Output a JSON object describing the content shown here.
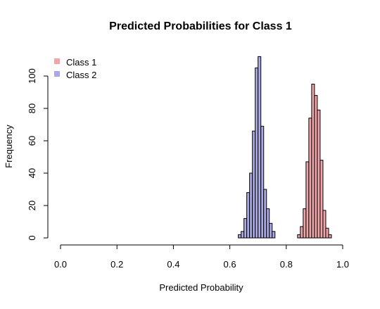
{
  "chart_data": {
    "type": "bar",
    "title": "Predicted Probabilities for Class 1",
    "xlabel": "Predicted Probability",
    "ylabel": "Frequency",
    "xlim": [
      0.0,
      1.0
    ],
    "ylim": [
      0,
      110
    ],
    "x_ticks": [
      "0.0",
      "0.2",
      "0.4",
      "0.6",
      "0.8",
      "1.0"
    ],
    "y_ticks": [
      "0",
      "20",
      "40",
      "60",
      "80",
      "100"
    ],
    "bin_width": 0.01,
    "grid": false,
    "legend_position": "top-left",
    "series": [
      {
        "name": "Class 1",
        "color": "#f4a3a8",
        "bins": [
          {
            "x0": 0.84,
            "x1": 0.85,
            "count": 2
          },
          {
            "x0": 0.85,
            "x1": 0.86,
            "count": 7
          },
          {
            "x0": 0.86,
            "x1": 0.87,
            "count": 18
          },
          {
            "x0": 0.87,
            "x1": 0.88,
            "count": 47
          },
          {
            "x0": 0.88,
            "x1": 0.89,
            "count": 74
          },
          {
            "x0": 0.89,
            "x1": 0.9,
            "count": 95
          },
          {
            "x0": 0.9,
            "x1": 0.91,
            "count": 88
          },
          {
            "x0": 0.91,
            "x1": 0.92,
            "count": 79
          },
          {
            "x0": 0.92,
            "x1": 0.93,
            "count": 48
          },
          {
            "x0": 0.93,
            "x1": 0.94,
            "count": 17
          },
          {
            "x0": 0.94,
            "x1": 0.95,
            "count": 6
          },
          {
            "x0": 0.95,
            "x1": 0.96,
            "count": 2
          }
        ]
      },
      {
        "name": "Class 2",
        "color": "#a8a8f0",
        "bins": [
          {
            "x0": 0.63,
            "x1": 0.64,
            "count": 2
          },
          {
            "x0": 0.64,
            "x1": 0.65,
            "count": 4
          },
          {
            "x0": 0.65,
            "x1": 0.66,
            "count": 12
          },
          {
            "x0": 0.66,
            "x1": 0.67,
            "count": 28
          },
          {
            "x0": 0.67,
            "x1": 0.68,
            "count": 40
          },
          {
            "x0": 0.68,
            "x1": 0.69,
            "count": 66
          },
          {
            "x0": 0.69,
            "x1": 0.7,
            "count": 105
          },
          {
            "x0": 0.7,
            "x1": 0.71,
            "count": 112
          },
          {
            "x0": 0.71,
            "x1": 0.72,
            "count": 69
          },
          {
            "x0": 0.72,
            "x1": 0.73,
            "count": 30
          },
          {
            "x0": 0.73,
            "x1": 0.74,
            "count": 18
          },
          {
            "x0": 0.74,
            "x1": 0.75,
            "count": 9
          },
          {
            "x0": 0.75,
            "x1": 0.76,
            "count": 4
          }
        ]
      }
    ]
  }
}
